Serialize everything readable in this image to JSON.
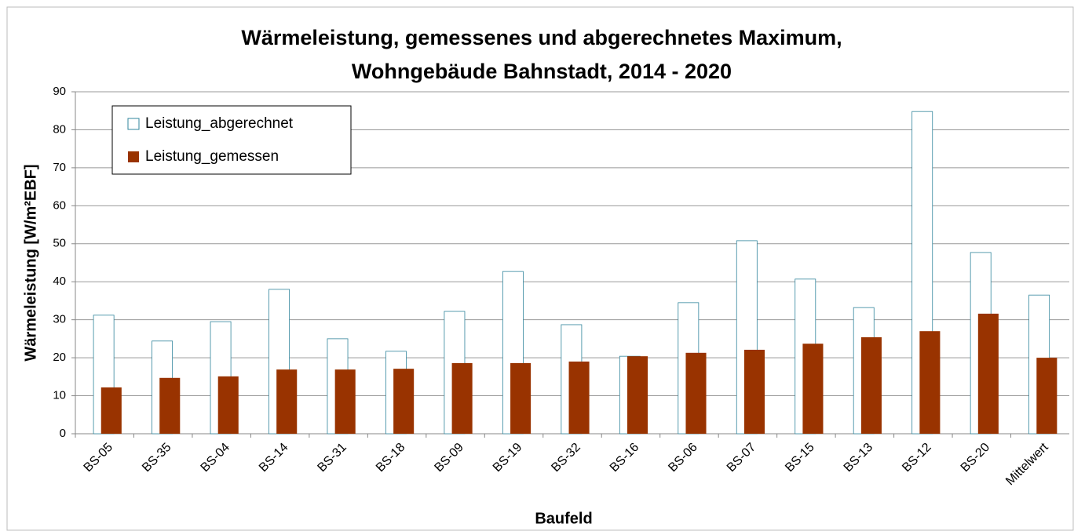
{
  "chart_data": {
    "type": "bar",
    "title": [
      "Wärmeleistung, gemessenes und abgerechnetes  Maximum,",
      "Wohngebäude Bahnstadt, 2014 - 2020"
    ],
    "x_label": "Baufeld",
    "y_label": "Wärmeleistung [W/m²EBF]",
    "categories": [
      "BS-05",
      "BS-35",
      "BS-04",
      "BS-14",
      "BS-31",
      "BS-18",
      "BS-09",
      "BS-19",
      "BS-32",
      "BS-16",
      "BS-06",
      "BS-07",
      "BS-15",
      "BS-13",
      "BS-12",
      "BS-20",
      "Mittelwert"
    ],
    "series": [
      {
        "name": "Leistung_abgerechnet",
        "color": "#ffffff",
        "values": [
          31.2,
          24.4,
          29.5,
          38.0,
          25.0,
          21.7,
          32.2,
          42.7,
          28.7,
          20.4,
          34.5,
          50.8,
          40.7,
          33.2,
          84.8,
          47.7,
          36.5
        ]
      },
      {
        "name": "Leistung_gemessen",
        "color": "#993300",
        "values": [
          12.2,
          14.7,
          15.1,
          16.9,
          16.9,
          17.1,
          18.6,
          18.6,
          19.0,
          20.4,
          21.3,
          22.1,
          23.7,
          25.4,
          27.0,
          31.6,
          20.0
        ]
      }
    ],
    "ylim": [
      0,
      90
    ],
    "yticks": [
      0,
      10,
      20,
      30,
      40,
      50,
      60,
      70,
      80,
      90
    ],
    "grid": true,
    "legend": "upper left"
  }
}
